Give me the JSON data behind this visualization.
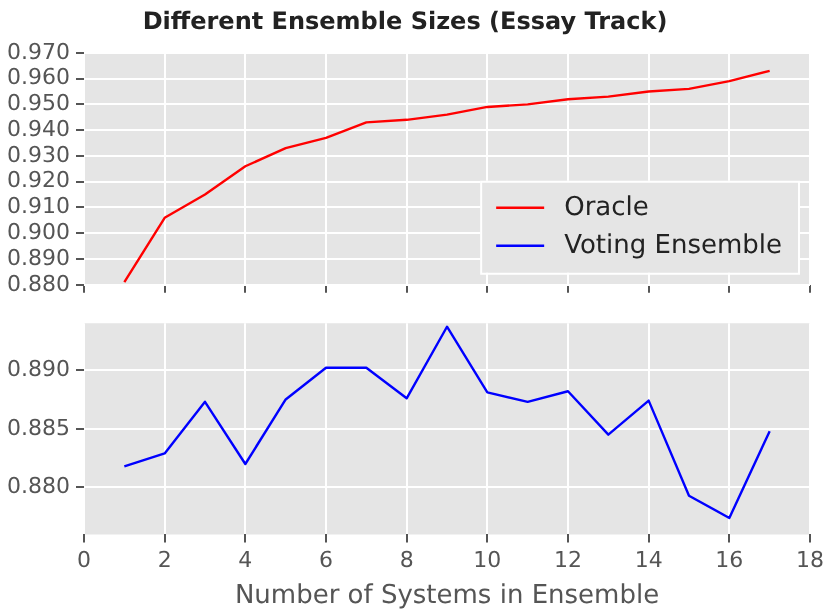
{
  "chart_data": [
    {
      "type": "line",
      "title": "Different Ensemble Sizes (Essay Track)",
      "x": [
        1,
        2,
        3,
        4,
        5,
        6,
        7,
        8,
        9,
        10,
        11,
        12,
        13,
        14,
        15,
        16,
        17
      ],
      "series": [
        {
          "name": "Oracle",
          "color": "#ff0000",
          "values": [
            0.881,
            0.906,
            0.915,
            0.926,
            0.933,
            0.937,
            0.943,
            0.944,
            0.946,
            0.949,
            0.95,
            0.952,
            0.953,
            0.955,
            0.956,
            0.959,
            0.963
          ]
        }
      ],
      "xlim": [
        0,
        18
      ],
      "xticks": [
        0,
        2,
        4,
        6,
        8,
        10,
        12,
        14,
        16,
        18
      ],
      "ylim": [
        0.88,
        0.97
      ],
      "yticks": [
        {
          "value": 0.88,
          "label": "0.880"
        },
        {
          "value": 0.89,
          "label": "0.890"
        },
        {
          "value": 0.9,
          "label": "0.900"
        },
        {
          "value": 0.91,
          "label": "0.910"
        },
        {
          "value": 0.92,
          "label": "0.920"
        },
        {
          "value": 0.93,
          "label": "0.930"
        },
        {
          "value": 0.94,
          "label": "0.940"
        },
        {
          "value": 0.95,
          "label": "0.950"
        },
        {
          "value": 0.96,
          "label": "0.960"
        },
        {
          "value": 0.97,
          "label": "0.970"
        }
      ],
      "tick_labels": "y",
      "grid": true,
      "legend": "bottom right"
    },
    {
      "type": "line",
      "xlabel": "Number of Systems in Ensemble",
      "x": [
        1,
        2,
        3,
        4,
        5,
        6,
        7,
        8,
        9,
        10,
        11,
        12,
        13,
        14,
        15,
        16,
        17
      ],
      "series": [
        {
          "name": "Voting Ensemble",
          "color": "#0000ff",
          "values": [
            0.8818,
            0.8829,
            0.8873,
            0.882,
            0.8875,
            0.8902,
            0.8902,
            0.8876,
            0.8937,
            0.8881,
            0.8873,
            0.8882,
            0.8845,
            0.8874,
            0.8793,
            0.8774,
            0.8848
          ]
        }
      ],
      "xlim": [
        0,
        18
      ],
      "xticks": [
        0,
        2,
        4,
        6,
        8,
        10,
        12,
        14,
        16,
        18
      ],
      "ylim": [
        0.876,
        0.894
      ],
      "yticks": [
        {
          "value": 0.88,
          "label": "0.880"
        },
        {
          "value": 0.885,
          "label": "0.885"
        },
        {
          "value": 0.89,
          "label": "0.890"
        }
      ],
      "grid": true
    }
  ]
}
